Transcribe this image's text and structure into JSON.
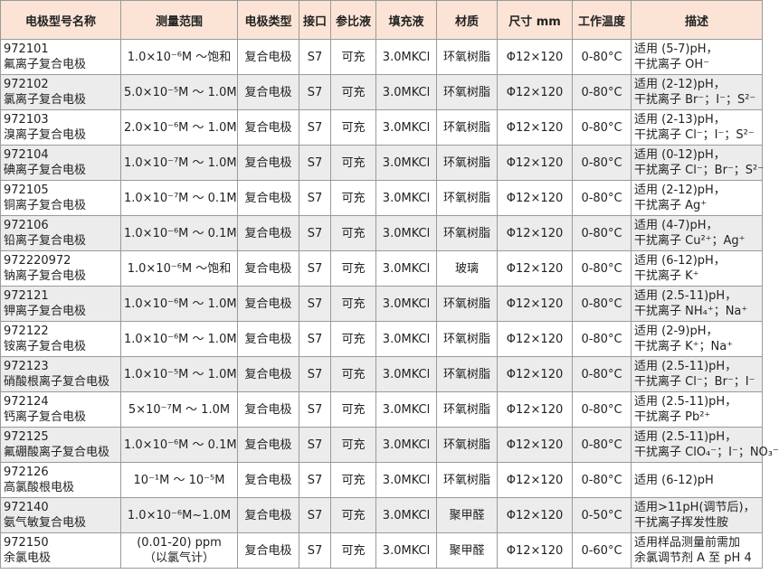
{
  "table": {
    "header": [
      "电极型号名称",
      "测量范围",
      "电极类型",
      "接口",
      "参比液",
      "填充液",
      "材质",
      "尺寸 mm",
      "工作温度",
      "描述"
    ],
    "rows": [
      [
        [
          "972101",
          "氟离子复合电极"
        ],
        [
          "1.0×10⁻⁶M ～饱和"
        ],
        [
          "复合电极"
        ],
        [
          "S7"
        ],
        [
          "可充"
        ],
        [
          "3.0MKCl"
        ],
        [
          "环氧树脂"
        ],
        [
          "Φ12×120"
        ],
        [
          "0-80°C"
        ],
        [
          "适用 (5-7)pH，",
          "干扰离子 OH⁻"
        ]
      ],
      [
        [
          "972102",
          "氯离子复合电极"
        ],
        [
          "5.0×10⁻⁵M ～ 1.0M"
        ],
        [
          "复合电极"
        ],
        [
          "S7"
        ],
        [
          "可充"
        ],
        [
          "3.0MKCl"
        ],
        [
          "环氧树脂"
        ],
        [
          "Φ12×120"
        ],
        [
          "0-80°C"
        ],
        [
          "适用 (2-12)pH，",
          "干扰离子 Br⁻；I⁻；S²⁻"
        ]
      ],
      [
        [
          "972103",
          "溴离子复合电极"
        ],
        [
          "2.0×10⁻⁶M ～ 1.0M"
        ],
        [
          "复合电极"
        ],
        [
          "S7"
        ],
        [
          "可充"
        ],
        [
          "3.0MKCl"
        ],
        [
          "环氧树脂"
        ],
        [
          "Φ12×120"
        ],
        [
          "0-80°C"
        ],
        [
          "适用 (2-13)pH，",
          "干扰离子 Cl⁻；I⁻；S²⁻"
        ]
      ],
      [
        [
          "972104",
          "碘离子复合电极"
        ],
        [
          "1.0×10⁻⁷M ～ 1.0M"
        ],
        [
          "复合电极"
        ],
        [
          "S7"
        ],
        [
          "可充"
        ],
        [
          "3.0MKCl"
        ],
        [
          "环氧树脂"
        ],
        [
          "Φ12×120"
        ],
        [
          "0-80°C"
        ],
        [
          "适用 (0-12)pH，",
          "干扰离子 Cl⁻；Br⁻；S²⁻"
        ]
      ],
      [
        [
          "972105",
          "铜离子复合电极"
        ],
        [
          "1.0×10⁻⁷M ～ 0.1M"
        ],
        [
          "复合电极"
        ],
        [
          "S7"
        ],
        [
          "可充"
        ],
        [
          "3.0MKCl"
        ],
        [
          "环氧树脂"
        ],
        [
          "Φ12×120"
        ],
        [
          "0-80°C"
        ],
        [
          "适用 (2-12)pH，",
          "干扰离子 Ag⁺"
        ]
      ],
      [
        [
          "972106",
          "铅离子复合电极"
        ],
        [
          "1.0×10⁻⁶M ～ 0.1M"
        ],
        [
          "复合电极"
        ],
        [
          "S7"
        ],
        [
          "可充"
        ],
        [
          "3.0MKCl"
        ],
        [
          "环氧树脂"
        ],
        [
          "Φ12×120"
        ],
        [
          "0-80°C"
        ],
        [
          "适用 (4-7)pH，",
          "干扰离子 Cu²⁺；Ag⁺"
        ]
      ],
      [
        [
          "972220972",
          "钠离子复合电极"
        ],
        [
          "1.0×10⁻⁶M ～饱和"
        ],
        [
          "复合电极"
        ],
        [
          "S7"
        ],
        [
          "可充"
        ],
        [
          "3.0MKCl"
        ],
        [
          "玻璃"
        ],
        [
          "Φ12×120"
        ],
        [
          "0-80°C"
        ],
        [
          "适用 (6-12)pH，",
          "干扰离子 K⁺"
        ]
      ],
      [
        [
          "972121",
          "钾离子复合电极"
        ],
        [
          "1.0×10⁻⁶M ～ 1.0M"
        ],
        [
          "复合电极"
        ],
        [
          "S7"
        ],
        [
          "可充"
        ],
        [
          "3.0MKCl"
        ],
        [
          "环氧树脂"
        ],
        [
          "Φ12×120"
        ],
        [
          "0-80°C"
        ],
        [
          "适用 (2.5-11)pH，",
          "干扰离子 NH₄⁺；Na⁺"
        ]
      ],
      [
        [
          "972122",
          "铵离子复合电极"
        ],
        [
          "1.0×10⁻⁶M ～ 1.0M"
        ],
        [
          "复合电极"
        ],
        [
          "S7"
        ],
        [
          "可充"
        ],
        [
          "3.0MKCl"
        ],
        [
          "环氧树脂"
        ],
        [
          "Φ12×120"
        ],
        [
          "0-80°C"
        ],
        [
          "适用 (2-9)pH，",
          "干扰离子 K⁺；Na⁺"
        ]
      ],
      [
        [
          "972123",
          "硝酸根离子复合电极"
        ],
        [
          "1.0×10⁻⁵M ～ 1.0M"
        ],
        [
          "复合电极"
        ],
        [
          "S7"
        ],
        [
          "可充"
        ],
        [
          "3.0MKCl"
        ],
        [
          "环氧树脂"
        ],
        [
          "Φ12×120"
        ],
        [
          "0-80°C"
        ],
        [
          "适用 (2.5-11)pH，",
          "干扰离子 Cl⁻；Br⁻；I⁻"
        ]
      ],
      [
        [
          "972124",
          "钙离子复合电极"
        ],
        [
          "5×10⁻⁷M ～ 1.0M"
        ],
        [
          "复合电极"
        ],
        [
          "S7"
        ],
        [
          "可充"
        ],
        [
          "3.0MKCl"
        ],
        [
          "环氧树脂"
        ],
        [
          "Φ12×120"
        ],
        [
          "0-80°C"
        ],
        [
          "适用 (2.5-11)pH，",
          "干扰离子 Pb²⁺"
        ]
      ],
      [
        [
          "972125",
          "氟硼酸离子复合电极"
        ],
        [
          "1.0×10⁻⁶M ～ 0.1M"
        ],
        [
          "复合电极"
        ],
        [
          "S7"
        ],
        [
          "可充"
        ],
        [
          "3.0MKCl"
        ],
        [
          "环氧树脂"
        ],
        [
          "Φ12×120"
        ],
        [
          "0-80°C"
        ],
        [
          "适用 (2.5-11)pH，",
          "干扰离子 ClO₄⁻；I⁻；NO₃⁻"
        ]
      ],
      [
        [
          "972126",
          "高氯酸根电极"
        ],
        [
          "10⁻¹M ～ 10⁻⁵M"
        ],
        [
          "复合电极"
        ],
        [
          "S7"
        ],
        [
          "可充"
        ],
        [
          "3.0MKCl"
        ],
        [
          "环氧树脂"
        ],
        [
          "Φ12×120"
        ],
        [
          "0-80°C"
        ],
        [
          "适用 (6-12)pH"
        ]
      ],
      [
        [
          "972140",
          "氨气敏复合电极"
        ],
        [
          "1.0×10⁻⁶M~1.0M"
        ],
        [
          "复合电极"
        ],
        [
          "S7"
        ],
        [
          "可充"
        ],
        [
          "3.0MKCl"
        ],
        [
          "聚甲醛"
        ],
        [
          "Φ12×120"
        ],
        [
          "0-50°C"
        ],
        [
          "适用>11pH(调节后)，",
          "干扰离子挥发性胺"
        ]
      ],
      [
        [
          "972150",
          "余氯电极"
        ],
        [
          "(0.01-20) ppm",
          "（以氯气计）"
        ],
        [
          "复合电极"
        ],
        [
          "S7"
        ],
        [
          "可充"
        ],
        [
          "3.0MKCl"
        ],
        [
          "聚甲醛"
        ],
        [
          "Φ12×120"
        ],
        [
          "0-60°C"
        ],
        [
          "适用样品测量前需加",
          "余氯调节剂 A 至 pH 4"
        ]
      ]
    ]
  }
}
